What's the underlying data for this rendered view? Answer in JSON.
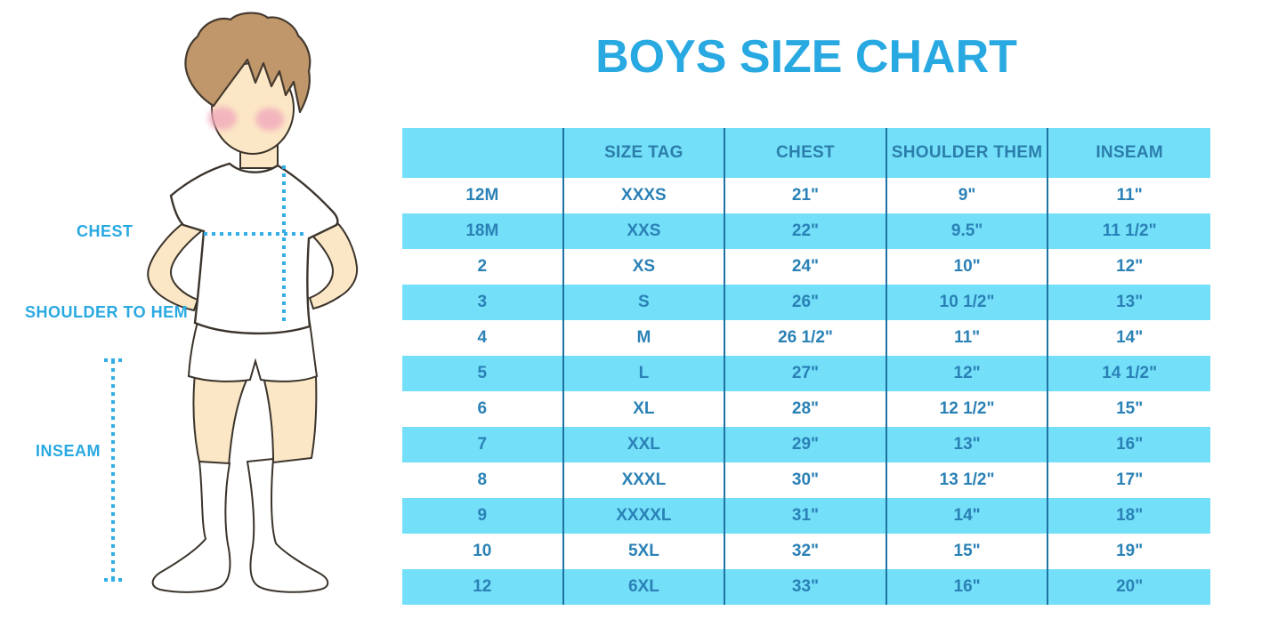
{
  "title": "BOYS SIZE CHART",
  "figure": {
    "chest_label": "CHEST",
    "shoulder_to_hem_label": "SHOULDER TO HEM",
    "inseam_label": "INSEAM"
  },
  "chart_data": {
    "type": "table",
    "title": "BOYS SIZE CHART",
    "columns": [
      "",
      "SIZE TAG",
      "CHEST",
      "SHOULDER THEM",
      "INSEAM"
    ],
    "rows": [
      [
        "12M",
        "XXXS",
        "21\"",
        "9\"",
        "11\""
      ],
      [
        "18M",
        "XXS",
        "22\"",
        "9.5\"",
        "11 1/2\""
      ],
      [
        "2",
        "XS",
        "24\"",
        "10\"",
        "12\""
      ],
      [
        "3",
        "S",
        "26\"",
        "10 1/2\"",
        "13\""
      ],
      [
        "4",
        "M",
        "26 1/2\"",
        "11\"",
        "14\""
      ],
      [
        "5",
        "L",
        "27\"",
        "12\"",
        "14 1/2\""
      ],
      [
        "6",
        "XL",
        "28\"",
        "12 1/2\"",
        "15\""
      ],
      [
        "7",
        "XXL",
        "29\"",
        "13\"",
        "16\""
      ],
      [
        "8",
        "XXXL",
        "30\"",
        "13 1/2\"",
        "17\""
      ],
      [
        "9",
        "XXXXL",
        "31\"",
        "14\"",
        "18\""
      ],
      [
        "10",
        "5XL",
        "32\"",
        "15\"",
        "19\""
      ],
      [
        "12",
        "6XL",
        "33\"",
        "16\"",
        "20\""
      ]
    ],
    "layout": {
      "banding": "alternating header+even rows light blue",
      "grid": "vertical column dividers only"
    }
  },
  "colors": {
    "accent_blue": "#29A9E1",
    "band_blue": "#74DFF8",
    "table_text_blue": "#2A81B6",
    "divider_blue": "#1E72A4",
    "skin": "#FBE7C5",
    "hair_brown": "#C0976A",
    "cheek_pink": "#F2A9BC",
    "outline": "#3B342C"
  }
}
